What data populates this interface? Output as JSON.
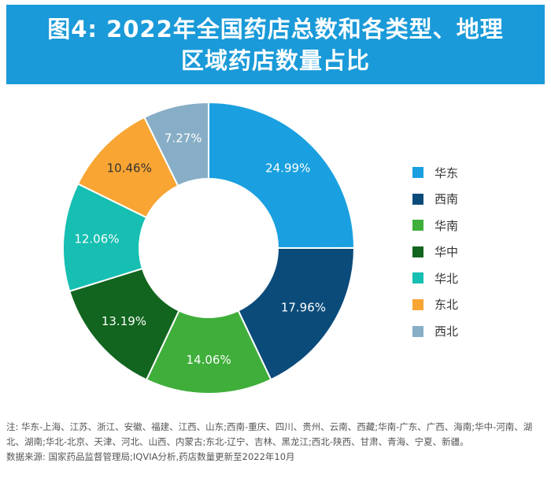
{
  "title": {
    "line1": "图4: 2022年全国药店总数和各类型、地理",
    "line2": "区域药店数量占比"
  },
  "chart_data": {
    "type": "pie",
    "title": "图4: 2022年全国药店总数和各类型、地理区域药店数量占比",
    "donut": true,
    "series": [
      {
        "name": "华东",
        "value": 24.99,
        "label": "24.99%",
        "color": "#1aa0e0",
        "label_color": "#ffffff"
      },
      {
        "name": "西南",
        "value": 17.96,
        "label": "17.96%",
        "color": "#0b4b7a",
        "label_color": "#ffffff"
      },
      {
        "name": "华南",
        "value": 14.06,
        "label": "14.06%",
        "color": "#3fae3a",
        "label_color": "#ffffff"
      },
      {
        "name": "华中",
        "value": 13.19,
        "label": "13.19%",
        "color": "#12651f",
        "label_color": "#ffffff"
      },
      {
        "name": "华北",
        "value": 12.06,
        "label": "12.06%",
        "color": "#16bfb1",
        "label_color": "#ffffff"
      },
      {
        "name": "东北",
        "value": 10.46,
        "label": "10.46%",
        "color": "#f9a533",
        "label_color": "#333333"
      },
      {
        "name": "西北",
        "value": 7.27,
        "label": "7.27%",
        "color": "#87aec6",
        "label_color": "#ffffff"
      }
    ],
    "legend_position": "right"
  },
  "notes": {
    "note": "注: 华东-上海、江苏、浙江、安徽、福建、江西、山东;西南-重庆、四川、贵州、云南、西藏;华南-广东、广西、海南;华中-河南、湖北、湖南;华北-北京、天津、河北、山西、内蒙古;东北-辽宁、吉林、黑龙江;西北-陕西、甘肃、青海、宁夏、新疆。",
    "source": "数据来源: 国家药品监督管理局;IQVIA分析,药店数量更新至2022年10月"
  }
}
